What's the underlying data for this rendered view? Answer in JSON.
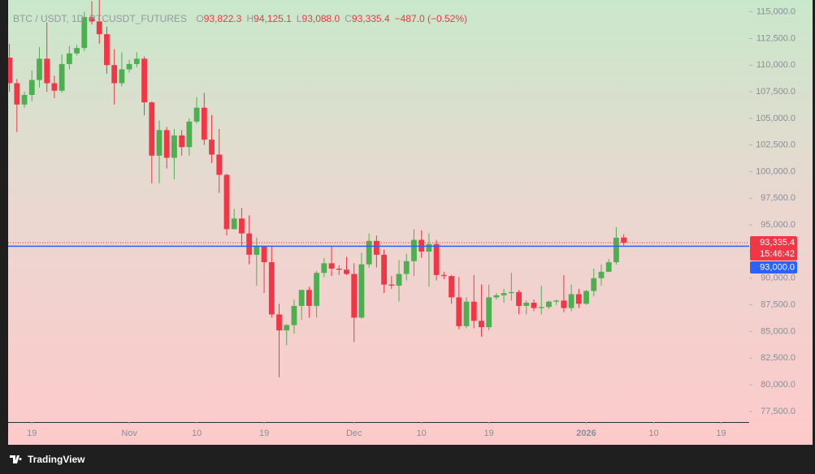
{
  "chart_data": {
    "type": "candlestick",
    "title": "BTC / USDT, 1D, BTCUSDT_FUTURES",
    "legend_fields": [
      {
        "key": "O",
        "label": "93,822.3"
      },
      {
        "key": "H",
        "label": "94,125.1"
      },
      {
        "key": "L",
        "label": "93,088.0"
      },
      {
        "key": "C",
        "label": "93,335.4"
      }
    ],
    "change_label": "−487.0 (−0.52%)",
    "up_color": "#4caf50",
    "down_color": "#f23645",
    "x": [
      "Oct 16",
      "Oct 17",
      "Oct 18",
      "Oct 19",
      "Oct 20",
      "Oct 21",
      "Oct 22",
      "Oct 23",
      "Oct 24",
      "Oct 25",
      "Oct 26",
      "Oct 27",
      "Oct 28",
      "Oct 29",
      "Oct 30",
      "Oct 31",
      "Nov 1",
      "Nov 2",
      "Nov 3",
      "Nov 4",
      "Nov 5",
      "Nov 6",
      "Nov 7",
      "Nov 8",
      "Nov 9",
      "Nov 10",
      "Nov 11",
      "Nov 12",
      "Nov 13",
      "Nov 14",
      "Nov 15",
      "Nov 16",
      "Nov 17",
      "Nov 18",
      "Nov 19",
      "Nov 20",
      "Nov 21",
      "Nov 22",
      "Nov 23",
      "Nov 24",
      "Nov 25",
      "Nov 26",
      "Nov 27",
      "Nov 28",
      "Nov 29",
      "Nov 30",
      "Dec 1",
      "Dec 2",
      "Dec 3",
      "Dec 4",
      "Dec 5",
      "Dec 6",
      "Dec 7",
      "Dec 8",
      "Dec 9",
      "Dec 10",
      "Dec 11",
      "Dec 12",
      "Dec 13",
      "Dec 14",
      "Dec 15",
      "Dec 16",
      "Dec 17",
      "Dec 18",
      "Dec 19",
      "Dec 20",
      "Dec 21",
      "Dec 22",
      "Dec 23",
      "Dec 24",
      "Dec 25",
      "Dec 26",
      "Dec 27",
      "Dec 28",
      "Dec 29",
      "Dec 30",
      "Dec 31",
      "Jan 1",
      "Jan 2",
      "Jan 3",
      "Jan 4",
      "Jan 5",
      "Jan 6"
    ],
    "open": [
      110700,
      108300,
      106300,
      107200,
      108600,
      110600,
      108300,
      107600,
      110100,
      111100,
      111600,
      114500,
      114100,
      112900,
      110000,
      108300,
      109600,
      110100,
      110600,
      106500,
      101500,
      103900,
      101300,
      103400,
      102300,
      104700,
      106000,
      103000,
      101600,
      99700,
      94600,
      95600,
      94200,
      92200,
      93000,
      91500,
      86600,
      85100,
      85600,
      87400,
      88900,
      87400,
      90500,
      91400,
      90900,
      90800,
      90400,
      86300,
      91300,
      93500,
      92200,
      89400,
      89300,
      90400,
      91600,
      93600,
      92500,
      93200,
      90300,
      90200,
      88200,
      85500,
      87800,
      86000,
      85400,
      88200,
      88400,
      88600,
      88700,
      87400,
      87700,
      87200,
      87300,
      87800,
      87900,
      87200,
      88500,
      87600,
      88800,
      90000,
      90600,
      91500,
      93822.3
    ],
    "high": [
      112000,
      108700,
      107500,
      109500,
      111700,
      114000,
      109000,
      111000,
      111800,
      111900,
      115000,
      116000,
      116100,
      113600,
      111500,
      111200,
      110500,
      111200,
      110800,
      106600,
      104800,
      104200,
      104000,
      103900,
      105000,
      107000,
      107400,
      105300,
      104000,
      99800,
      96500,
      96600,
      95900,
      93800,
      93000,
      93000,
      87600,
      85700,
      88000,
      88900,
      89200,
      90700,
      91900,
      93000,
      91200,
      92000,
      91400,
      92400,
      94200,
      94000,
      92700,
      90200,
      91700,
      92300,
      94600,
      94500,
      94200,
      93600,
      90600,
      90300,
      90100,
      88200,
      90300,
      89400,
      89400,
      88600,
      89000,
      90500,
      88900,
      87900,
      88000,
      89300,
      87900,
      88000,
      90300,
      89400,
      89000,
      88900,
      90900,
      91300,
      91800,
      94800,
      94125.1
    ],
    "low": [
      107500,
      103700,
      106000,
      106600,
      107900,
      107500,
      106900,
      107400,
      109600,
      110900,
      111300,
      113800,
      112000,
      109200,
      106300,
      108000,
      109300,
      109800,
      105300,
      98900,
      98900,
      100300,
      99300,
      101500,
      101500,
      104500,
      102500,
      100800,
      98000,
      94000,
      94600,
      93000,
      91300,
      89300,
      88600,
      86300,
      80700,
      83700,
      84800,
      86100,
      86300,
      86300,
      90100,
      90200,
      90300,
      90300,
      84000,
      86200,
      91000,
      91000,
      88600,
      89000,
      87800,
      89800,
      90200,
      91900,
      89200,
      89800,
      89900,
      87600,
      85200,
      85300,
      85300,
      84500,
      85100,
      88000,
      87700,
      87900,
      86600,
      86600,
      86900,
      86600,
      87100,
      87500,
      86800,
      86900,
      87200,
      87500,
      88300,
      89300,
      90600,
      91300,
      93088.0
    ],
    "close": [
      108300,
      106300,
      107200,
      108600,
      110600,
      108300,
      107600,
      110100,
      111100,
      111600,
      114500,
      114100,
      112900,
      110000,
      108300,
      109600,
      110100,
      110600,
      106500,
      101500,
      103900,
      101300,
      103400,
      102300,
      104700,
      106000,
      103000,
      101600,
      99700,
      94600,
      95600,
      94200,
      92200,
      93000,
      91500,
      86600,
      85100,
      85600,
      87400,
      88900,
      87400,
      90500,
      91400,
      90900,
      90800,
      90400,
      86300,
      91300,
      93500,
      92200,
      89400,
      89300,
      90400,
      91600,
      93600,
      92500,
      93200,
      90300,
      90200,
      88200,
      85500,
      87800,
      86000,
      85400,
      88200,
      88400,
      88600,
      88700,
      87400,
      87700,
      87200,
      87300,
      87800,
      87900,
      87200,
      88500,
      87600,
      88800,
      90000,
      90600,
      91500,
      93800,
      93335.4
    ],
    "last_price_label": "93,335.4",
    "countdown": "15:46:42",
    "hline": {
      "value": 93000,
      "label": "93,000.0",
      "color": "#2962ff"
    },
    "ylim": [
      76500,
      115500
    ],
    "yticks": [
      {
        "value": 77500,
        "label": "77,500.0"
      },
      {
        "value": 80000,
        "label": "80,000.0"
      },
      {
        "value": 82500,
        "label": "82,500.0"
      },
      {
        "value": 85000,
        "label": "85,000.0"
      },
      {
        "value": 87500,
        "label": "87,500.0"
      },
      {
        "value": 90000,
        "label": "90,000.0"
      },
      {
        "value": 92500,
        "label": "92,500.0"
      },
      {
        "value": 95000,
        "label": "95,000.0"
      },
      {
        "value": 97500,
        "label": "97,500.0"
      },
      {
        "value": 100000,
        "label": "100,000.0"
      },
      {
        "value": 102500,
        "label": "102,500.0"
      },
      {
        "value": 105000,
        "label": "105,000.0"
      },
      {
        "value": 107500,
        "label": "107,500.0"
      },
      {
        "value": 110000,
        "label": "110,000.0"
      },
      {
        "value": 112500,
        "label": "112,500.0"
      },
      {
        "value": 115000,
        "label": "115,000.0"
      }
    ],
    "xticks": [
      {
        "value": "Oct 19",
        "label": "19"
      },
      {
        "value": "Nov 1",
        "label": "Nov"
      },
      {
        "value": "Nov 10",
        "label": "10"
      },
      {
        "value": "Nov 19",
        "label": "19"
      },
      {
        "value": "Dec 1",
        "label": "Dec"
      },
      {
        "value": "Dec 10",
        "label": "10"
      },
      {
        "value": "Dec 19",
        "label": "19"
      },
      {
        "value": "Jan 1",
        "label": "2026"
      },
      {
        "value": "Jan 10",
        "label": "10"
      },
      {
        "value": "Jan 19",
        "label": "19"
      }
    ],
    "grid": false
  },
  "footer": {
    "brand": "TradingView"
  }
}
